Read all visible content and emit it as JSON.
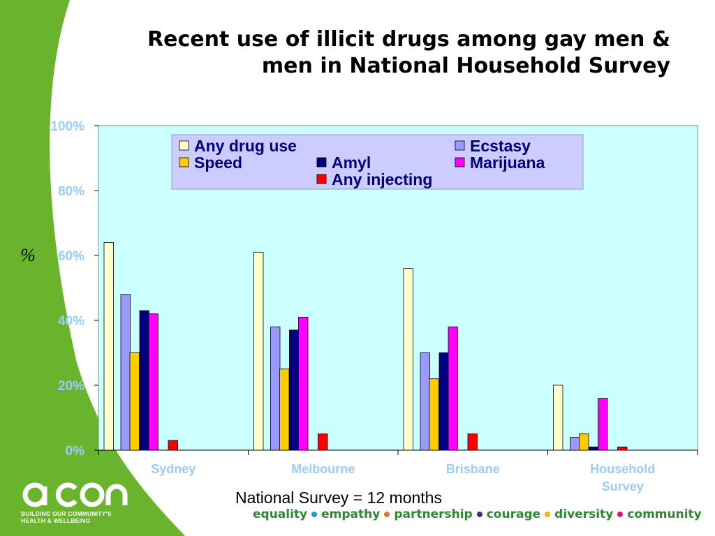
{
  "title_lines": [
    "Recent use of illicit drugs among gay men &",
    "men in National Household Survey"
  ],
  "chart_data": {
    "type": "bar",
    "ylabel": "%",
    "xlabel": "",
    "ylim": [
      0,
      100
    ],
    "yticks": [
      "0%",
      "20%",
      "40%",
      "60%",
      "80%",
      "100%"
    ],
    "categories": [
      [
        "Sydney"
      ],
      [
        "Melbourne"
      ],
      [
        "Brisbane"
      ],
      [
        "Household",
        "Survey"
      ]
    ],
    "series": [
      {
        "name": "Any drug use",
        "color": "#ffffcc",
        "values": [
          64,
          61,
          56,
          20
        ]
      },
      {
        "name": "Ecstasy",
        "color": "#9999ff",
        "values": [
          48,
          38,
          30,
          4
        ]
      },
      {
        "name": "Speed",
        "color": "#ffcc00",
        "values": [
          30,
          25,
          22,
          5
        ]
      },
      {
        "name": "Amyl",
        "color": "#000080",
        "values": [
          43,
          37,
          30,
          1
        ]
      },
      {
        "name": "Marijuana",
        "color": "#ff00ff",
        "values": [
          42,
          41,
          38,
          16
        ]
      },
      {
        "name": "Any injecting",
        "color": "#ff0000",
        "values": [
          3,
          5,
          5,
          1
        ]
      }
    ],
    "legend": "top",
    "plot_background": "#ccffff",
    "grid": false
  },
  "note": "National Survey = 12 months",
  "brand": {
    "logo": "acon",
    "tagline": [
      "BUILDING OUR COMMUNITY'S",
      "HEALTH & WELLBEING"
    ],
    "values": [
      {
        "word": "equality",
        "dot": "#1a9ad6"
      },
      {
        "word": "empathy",
        "dot": "#e4722e"
      },
      {
        "word": "partnership",
        "dot": "#4a2a7a"
      },
      {
        "word": "courage",
        "dot": "#f2b21b"
      },
      {
        "word": "diversity",
        "dot": "#d4186c"
      },
      {
        "word": "community",
        "dot": null
      }
    ],
    "green": "#6ab42d"
  }
}
